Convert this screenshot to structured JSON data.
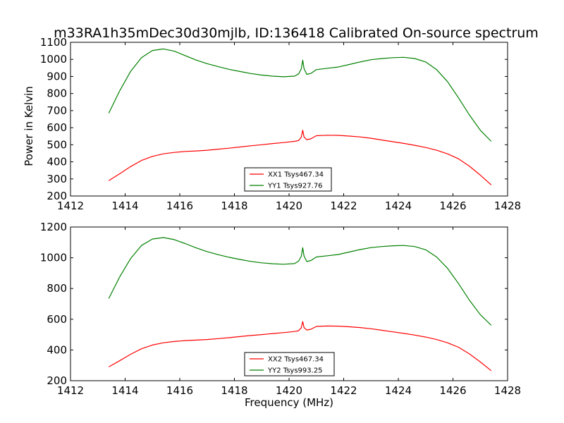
{
  "chart_data": [
    {
      "type": "line",
      "title": "m33RA1h35mDec30d30mjlb, ID:136418 Calibrated On-source spectrum",
      "xlabel": "",
      "ylabel": "Power in Kelvin",
      "xlim": [
        1412,
        1428
      ],
      "ylim": [
        200,
        1100
      ],
      "xticks": [
        1412,
        1414,
        1416,
        1418,
        1420,
        1422,
        1424,
        1426,
        1428
      ],
      "yticks": [
        200,
        300,
        400,
        500,
        600,
        700,
        800,
        900,
        1000,
        1100
      ],
      "grid": false,
      "legend_position": "bottom-center",
      "series": [
        {
          "name": "XX1 Tsys467.34",
          "color": "#ff0000",
          "x": [
            1413.4,
            1413.8,
            1414.2,
            1414.6,
            1415.0,
            1415.4,
            1415.8,
            1416.2,
            1416.6,
            1417.0,
            1417.4,
            1417.8,
            1418.2,
            1418.6,
            1419.0,
            1419.4,
            1419.8,
            1420.2,
            1420.35,
            1420.45,
            1420.5,
            1420.55,
            1420.65,
            1420.8,
            1421.0,
            1421.4,
            1421.8,
            1422.2,
            1422.6,
            1423.0,
            1423.4,
            1423.8,
            1424.2,
            1424.6,
            1425.0,
            1425.4,
            1425.8,
            1426.2,
            1426.6,
            1427.0,
            1427.4
          ],
          "values": [
            290,
            330,
            372,
            408,
            432,
            447,
            455,
            461,
            464,
            468,
            474,
            480,
            487,
            494,
            500,
            507,
            513,
            520,
            525,
            545,
            585,
            545,
            530,
            535,
            553,
            556,
            555,
            551,
            546,
            538,
            528,
            518,
            508,
            497,
            484,
            468,
            447,
            418,
            375,
            322,
            265
          ]
        },
        {
          "name": "YY1 Tsys927.76",
          "color": "#008000",
          "x": [
            1413.4,
            1413.8,
            1414.2,
            1414.6,
            1415.0,
            1415.4,
            1415.8,
            1416.2,
            1416.6,
            1417.0,
            1417.4,
            1417.8,
            1418.2,
            1418.6,
            1419.0,
            1419.4,
            1419.8,
            1420.2,
            1420.35,
            1420.45,
            1420.5,
            1420.55,
            1420.65,
            1420.8,
            1421.0,
            1421.4,
            1421.8,
            1422.2,
            1422.6,
            1423.0,
            1423.4,
            1423.8,
            1424.2,
            1424.6,
            1425.0,
            1425.4,
            1425.8,
            1426.2,
            1426.6,
            1427.0,
            1427.4
          ],
          "values": [
            685,
            815,
            930,
            1010,
            1052,
            1061,
            1048,
            1022,
            996,
            975,
            958,
            942,
            929,
            917,
            908,
            902,
            898,
            902,
            915,
            945,
            995,
            945,
            912,
            918,
            940,
            948,
            955,
            970,
            985,
            998,
            1005,
            1010,
            1012,
            1005,
            985,
            940,
            870,
            775,
            675,
            585,
            520
          ]
        }
      ]
    },
    {
      "type": "line",
      "title": "",
      "xlabel": "Frequency (MHz)",
      "ylabel": "",
      "xlim": [
        1412,
        1428
      ],
      "ylim": [
        200,
        1200
      ],
      "xticks": [
        1412,
        1414,
        1416,
        1418,
        1420,
        1422,
        1424,
        1426,
        1428
      ],
      "yticks": [
        200,
        400,
        600,
        800,
        1000,
        1200
      ],
      "grid": false,
      "legend_position": "bottom-center",
      "series": [
        {
          "name": "XX2 Tsys467.34",
          "color": "#ff0000",
          "x": [
            1413.4,
            1413.8,
            1414.2,
            1414.6,
            1415.0,
            1415.4,
            1415.8,
            1416.2,
            1416.6,
            1417.0,
            1417.4,
            1417.8,
            1418.2,
            1418.6,
            1419.0,
            1419.4,
            1419.8,
            1420.2,
            1420.35,
            1420.45,
            1420.5,
            1420.55,
            1420.65,
            1420.8,
            1421.0,
            1421.4,
            1421.8,
            1422.2,
            1422.6,
            1423.0,
            1423.4,
            1423.8,
            1424.2,
            1424.6,
            1425.0,
            1425.4,
            1425.8,
            1426.2,
            1426.6,
            1427.0,
            1427.4
          ],
          "values": [
            290,
            330,
            372,
            408,
            432,
            447,
            455,
            461,
            464,
            468,
            474,
            480,
            487,
            494,
            500,
            507,
            513,
            520,
            525,
            545,
            585,
            545,
            530,
            535,
            553,
            556,
            555,
            551,
            546,
            538,
            528,
            518,
            508,
            497,
            484,
            468,
            447,
            418,
            375,
            322,
            265
          ]
        },
        {
          "name": "YY2 Tsys993.25",
          "color": "#008000",
          "x": [
            1413.4,
            1413.8,
            1414.2,
            1414.6,
            1415.0,
            1415.4,
            1415.8,
            1416.2,
            1416.6,
            1417.0,
            1417.4,
            1417.8,
            1418.2,
            1418.6,
            1419.0,
            1419.4,
            1419.8,
            1420.2,
            1420.35,
            1420.45,
            1420.5,
            1420.55,
            1420.65,
            1420.8,
            1421.0,
            1421.4,
            1421.8,
            1422.2,
            1422.6,
            1423.0,
            1423.4,
            1423.8,
            1424.2,
            1424.6,
            1425.0,
            1425.4,
            1425.8,
            1426.2,
            1426.6,
            1427.0,
            1427.4
          ],
          "values": [
            735,
            875,
            995,
            1080,
            1122,
            1131,
            1118,
            1092,
            1064,
            1040,
            1020,
            1003,
            989,
            976,
            967,
            961,
            958,
            962,
            978,
            1010,
            1065,
            1010,
            975,
            982,
            1005,
            1013,
            1021,
            1037,
            1053,
            1066,
            1073,
            1078,
            1080,
            1073,
            1052,
            1005,
            932,
            832,
            725,
            630,
            560
          ]
        }
      ]
    }
  ]
}
